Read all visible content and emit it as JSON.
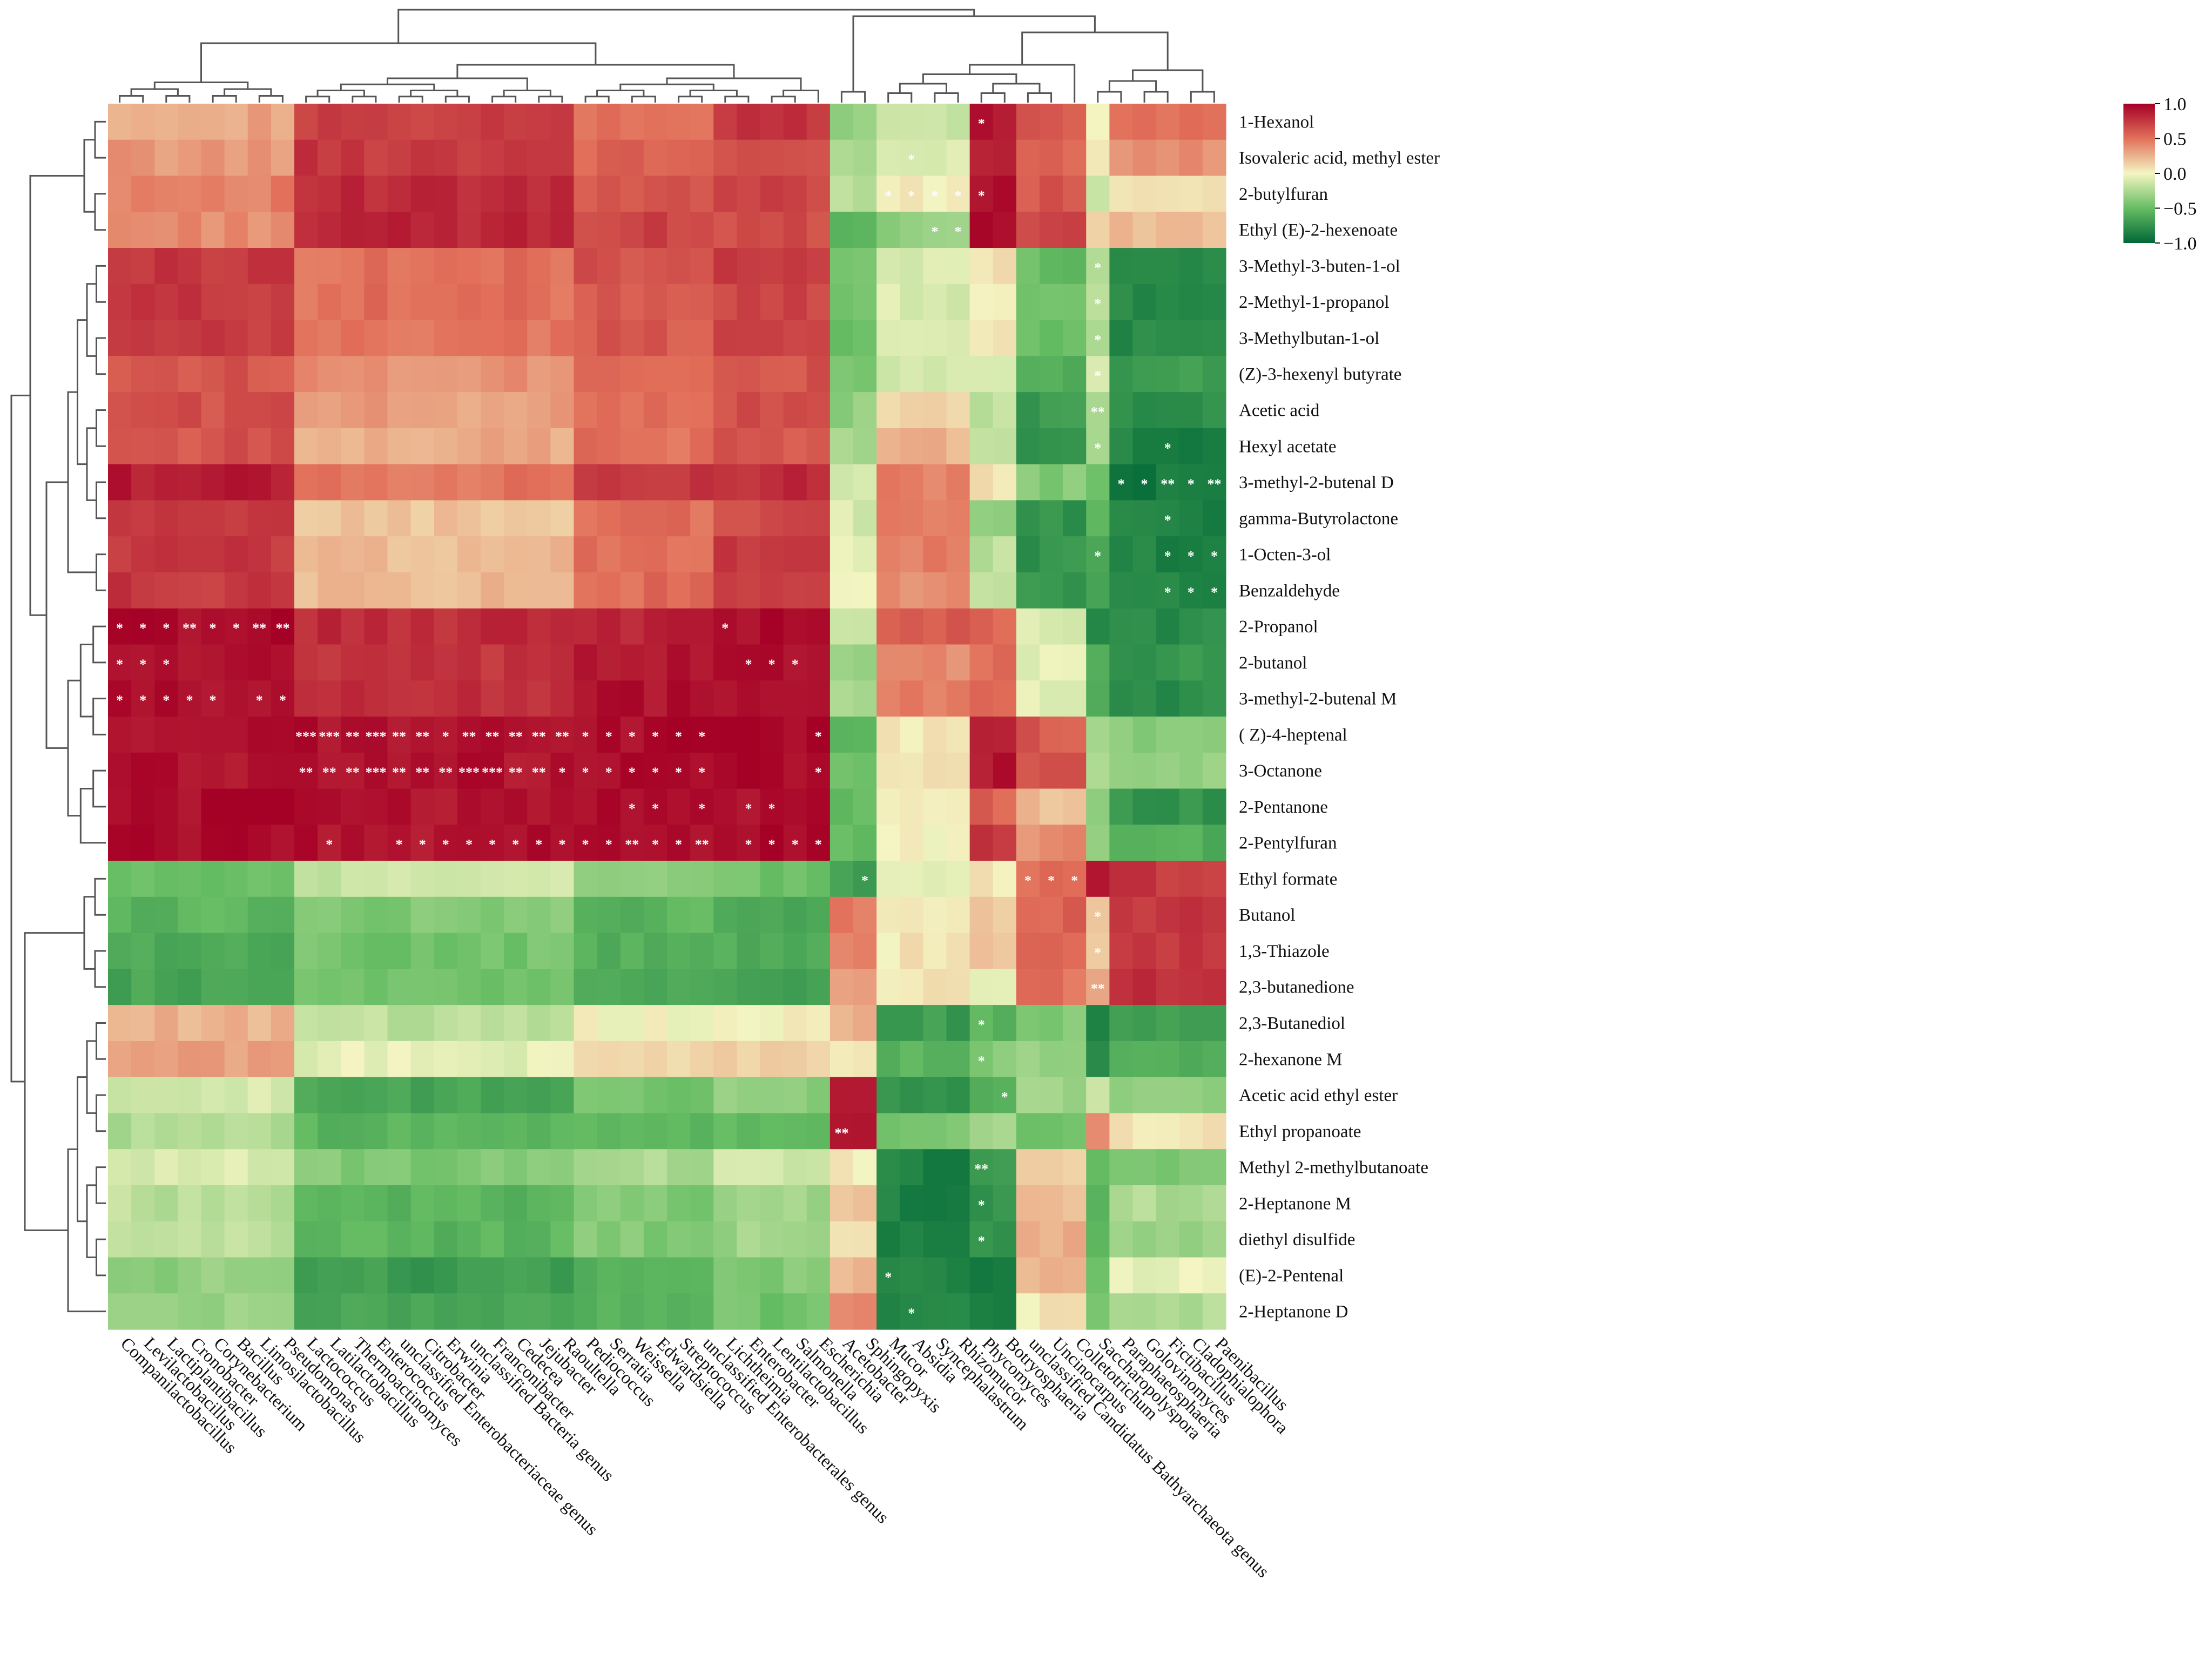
{
  "chart_data": {
    "type": "heatmap",
    "title": "",
    "rows": [
      "1-Hexanol",
      "Isovaleric acid, methyl ester",
      "2-butylfuran",
      "Ethyl (E)-2-hexenoate",
      "3-Methyl-3-buten-1-ol",
      "2-Methyl-1-propanol",
      "3-Methylbutan-1-ol",
      "(Z)-3-hexenyl butyrate",
      "Acetic acid",
      "Hexyl acetate",
      "3-methyl-2-butenal D",
      "gamma-Butyrolactone",
      "1-Octen-3-ol",
      "Benzaldehyde",
      "2-Propanol",
      "2-butanol",
      "3-methyl-2-butenal M",
      "( Z)-4-heptenal",
      "3-Octanone",
      "2-Pentanone",
      "2-Pentylfuran",
      "Ethyl formate",
      "Butanol",
      "1,3-Thiazole",
      "2,3-butanedione",
      "2,3-Butanediol",
      "2-hexanone M",
      "Acetic acid ethyl ester",
      "Ethyl propanoate",
      "Methyl 2-methylbutanoate",
      "2-Heptanone M",
      "diethyl disulfide",
      "(E)-2-Pentenal",
      "2-Heptanone D"
    ],
    "columns": [
      "Companilactobacillus",
      "Levilactobacillus",
      "Lactiplantibacillus",
      "Cronobacter",
      "Corynebacterium",
      "Bacillus",
      "Limosilactobacillus",
      "Pseudomonas",
      "Lactococcus",
      "Latilactobacillus",
      "Thermoactinomyces",
      "Enterococcus",
      "unclassified Enterobacteriaceae genus",
      "Citrobacter",
      "Erwinia",
      "unclassified Bacteria genus",
      "Franconibacter",
      "Cedecea",
      "Jejubacter",
      "Raoultella",
      "Pediococcus",
      "Serratia",
      "Weissella",
      "Edwardsiella",
      "Streptococcus",
      "unclassified Enterobacterales genus",
      "Lichtheimia",
      "Enterobacter",
      "Lentilactobacillus",
      "Salmonella",
      "Escherichia",
      "Acetobacter",
      "Sphingopyxis",
      "Mucor",
      "Absidia",
      "Syncephalastrum",
      "Rhizomucor",
      "Phycomyces",
      "Botryosphaeria",
      "unclassified Candidatus Bathyarchaeota genus",
      "Uncinocarpus",
      "Colletotrichum",
      "Saccharopolyspora",
      "Paraphaeosphaeria",
      "Golovinomyces",
      "Fictibacillus",
      "Cladophialophora",
      "Paenibacillus"
    ],
    "column_blocks": [
      {
        "start": 0,
        "end": 7
      },
      {
        "start": 8,
        "end": 19
      },
      {
        "start": 20,
        "end": 25
      },
      {
        "start": 26,
        "end": 30
      },
      {
        "start": 31,
        "end": 32
      },
      {
        "start": 33,
        "end": 36
      },
      {
        "start": 37,
        "end": 38
      },
      {
        "start": 39,
        "end": 41
      },
      {
        "start": 42,
        "end": 42
      },
      {
        "start": 43,
        "end": 47
      }
    ],
    "block_values": [
      [
        0.3,
        0.7,
        0.5,
        0.75,
        -0.35,
        -0.15,
        0.9,
        0.6,
        0.0,
        0.5
      ],
      [
        0.35,
        0.75,
        0.55,
        0.65,
        -0.3,
        -0.1,
        0.9,
        0.55,
        0.05,
        0.4
      ],
      [
        0.45,
        0.8,
        0.6,
        0.7,
        -0.2,
        0.05,
        0.95,
        0.6,
        -0.2,
        0.1
      ],
      [
        0.4,
        0.82,
        0.7,
        0.65,
        -0.6,
        -0.35,
        0.92,
        0.7,
        0.15,
        0.2
      ],
      [
        0.75,
        0.5,
        0.65,
        0.72,
        -0.45,
        -0.1,
        0.1,
        -0.5,
        -0.2,
        -0.8
      ],
      [
        0.75,
        0.5,
        0.62,
        0.7,
        -0.45,
        -0.1,
        0.05,
        -0.5,
        -0.2,
        -0.8
      ],
      [
        0.72,
        0.48,
        0.6,
        0.7,
        -0.45,
        -0.1,
        0.02,
        -0.5,
        -0.2,
        -0.8
      ],
      [
        0.62,
        0.38,
        0.55,
        0.62,
        -0.4,
        -0.15,
        -0.1,
        -0.6,
        -0.15,
        -0.7
      ],
      [
        0.65,
        0.32,
        0.52,
        0.65,
        -0.35,
        0.1,
        -0.2,
        -0.7,
        -0.25,
        -0.8
      ],
      [
        0.62,
        0.28,
        0.5,
        0.62,
        -0.3,
        0.25,
        -0.15,
        -0.75,
        -0.3,
        -0.85
      ],
      [
        0.88,
        0.48,
        0.78,
        0.8,
        -0.1,
        0.45,
        0.05,
        -0.4,
        -0.5,
        -0.9
      ],
      [
        0.72,
        0.18,
        0.5,
        0.68,
        -0.1,
        0.45,
        -0.35,
        -0.75,
        -0.55,
        -0.85
      ],
      [
        0.75,
        0.22,
        0.52,
        0.72,
        -0.05,
        0.45,
        -0.2,
        -0.75,
        -0.65,
        -0.85
      ],
      [
        0.75,
        0.22,
        0.52,
        0.72,
        -0.05,
        0.4,
        -0.15,
        -0.75,
        -0.65,
        -0.85
      ],
      [
        0.95,
        0.8,
        0.85,
        0.95,
        -0.1,
        0.6,
        0.55,
        -0.1,
        -0.8,
        -0.8
      ],
      [
        0.92,
        0.75,
        0.9,
        0.95,
        -0.3,
        0.4,
        0.5,
        -0.05,
        -0.6,
        -0.75
      ],
      [
        0.92,
        0.8,
        0.92,
        0.95,
        -0.3,
        0.45,
        0.5,
        -0.05,
        -0.6,
        -0.8
      ],
      [
        0.92,
        0.92,
        0.95,
        0.95,
        -0.5,
        0.05,
        0.9,
        0.6,
        -0.25,
        -0.4
      ],
      [
        0.92,
        0.92,
        0.95,
        0.95,
        -0.5,
        0.05,
        0.9,
        0.6,
        -0.25,
        -0.35
      ],
      [
        0.95,
        0.92,
        0.95,
        0.95,
        -0.5,
        0.0,
        0.55,
        0.2,
        -0.35,
        -0.75
      ],
      [
        0.95,
        0.92,
        0.95,
        0.95,
        -0.5,
        0.0,
        0.75,
        0.4,
        -0.3,
        -0.6
      ],
      [
        -0.5,
        -0.15,
        -0.35,
        -0.45,
        -0.7,
        -0.05,
        0.05,
        0.5,
        0.95,
        0.75
      ],
      [
        -0.55,
        -0.4,
        -0.55,
        -0.6,
        0.45,
        0.05,
        0.2,
        0.55,
        0.15,
        0.75
      ],
      [
        -0.6,
        -0.45,
        -0.6,
        -0.62,
        0.4,
        0.05,
        0.15,
        0.55,
        0.15,
        0.75
      ],
      [
        -0.65,
        -0.45,
        -0.62,
        -0.68,
        0.35,
        0.05,
        -0.05,
        0.5,
        0.3,
        0.8
      ],
      [
        0.25,
        -0.2,
        0.0,
        0.0,
        0.25,
        -0.7,
        -0.55,
        -0.4,
        -0.8,
        -0.7
      ],
      [
        0.3,
        -0.05,
        0.1,
        0.15,
        0.0,
        -0.55,
        -0.4,
        -0.35,
        -0.8,
        -0.6
      ],
      [
        -0.1,
        -0.65,
        -0.45,
        -0.35,
        0.85,
        -0.75,
        -0.55,
        -0.3,
        -0.1,
        -0.35
      ],
      [
        -0.25,
        -0.55,
        -0.55,
        -0.5,
        0.85,
        -0.45,
        -0.3,
        -0.5,
        0.35,
        0.05
      ],
      [
        -0.1,
        -0.4,
        -0.25,
        -0.15,
        0.05,
        -0.85,
        -0.7,
        0.15,
        -0.55,
        -0.4
      ],
      [
        -0.2,
        -0.55,
        -0.4,
        -0.3,
        0.2,
        -0.85,
        -0.75,
        0.2,
        -0.55,
        -0.25
      ],
      [
        -0.2,
        -0.55,
        -0.4,
        -0.3,
        0.05,
        -0.85,
        -0.75,
        0.25,
        -0.55,
        -0.3
      ],
      [
        -0.35,
        -0.7,
        -0.55,
        -0.4,
        0.25,
        -0.85,
        -0.85,
        0.25,
        -0.45,
        -0.05
      ],
      [
        -0.3,
        -0.65,
        -0.55,
        -0.45,
        0.4,
        -0.85,
        -0.85,
        0.05,
        -0.4,
        -0.25
      ]
    ],
    "significance": [
      {
        "row": 0,
        "col": 37,
        "label": "*"
      },
      {
        "row": 1,
        "col": 34,
        "label": "*"
      },
      {
        "row": 2,
        "col": 33,
        "label": "*"
      },
      {
        "row": 2,
        "col": 34,
        "label": "*"
      },
      {
        "row": 2,
        "col": 35,
        "label": "*"
      },
      {
        "row": 2,
        "col": 36,
        "label": "*"
      },
      {
        "row": 2,
        "col": 37,
        "label": "*"
      },
      {
        "row": 3,
        "col": 35,
        "label": "*"
      },
      {
        "row": 3,
        "col": 36,
        "label": "*"
      },
      {
        "row": 4,
        "col": 42,
        "label": "*"
      },
      {
        "row": 5,
        "col": 42,
        "label": "*"
      },
      {
        "row": 6,
        "col": 42,
        "label": "*"
      },
      {
        "row": 7,
        "col": 42,
        "label": "*"
      },
      {
        "row": 8,
        "col": 42,
        "label": "**"
      },
      {
        "row": 9,
        "col": 42,
        "label": "*"
      },
      {
        "row": 9,
        "col": 45,
        "label": "*"
      },
      {
        "row": 10,
        "col": 43,
        "label": "*"
      },
      {
        "row": 10,
        "col": 44,
        "label": "*"
      },
      {
        "row": 10,
        "col": 45,
        "label": "**"
      },
      {
        "row": 10,
        "col": 46,
        "label": "*"
      },
      {
        "row": 10,
        "col": 47,
        "label": "**"
      },
      {
        "row": 11,
        "col": 45,
        "label": "*"
      },
      {
        "row": 12,
        "col": 42,
        "label": "*"
      },
      {
        "row": 12,
        "col": 45,
        "label": "*"
      },
      {
        "row": 12,
        "col": 46,
        "label": "*"
      },
      {
        "row": 12,
        "col": 47,
        "label": "*"
      },
      {
        "row": 13,
        "col": 45,
        "label": "*"
      },
      {
        "row": 13,
        "col": 46,
        "label": "*"
      },
      {
        "row": 13,
        "col": 47,
        "label": "*"
      },
      {
        "row": 14,
        "col": 0,
        "label": "*"
      },
      {
        "row": 14,
        "col": 1,
        "label": "*"
      },
      {
        "row": 14,
        "col": 2,
        "label": "*"
      },
      {
        "row": 14,
        "col": 3,
        "label": "**"
      },
      {
        "row": 14,
        "col": 4,
        "label": "*"
      },
      {
        "row": 14,
        "col": 5,
        "label": "*"
      },
      {
        "row": 14,
        "col": 6,
        "label": "**"
      },
      {
        "row": 14,
        "col": 7,
        "label": "**"
      },
      {
        "row": 14,
        "col": 26,
        "label": "*"
      },
      {
        "row": 15,
        "col": 0,
        "label": "*"
      },
      {
        "row": 15,
        "col": 1,
        "label": "*"
      },
      {
        "row": 15,
        "col": 2,
        "label": "*"
      },
      {
        "row": 15,
        "col": 27,
        "label": "*"
      },
      {
        "row": 15,
        "col": 28,
        "label": "*"
      },
      {
        "row": 15,
        "col": 29,
        "label": "*"
      },
      {
        "row": 16,
        "col": 0,
        "label": "*"
      },
      {
        "row": 16,
        "col": 1,
        "label": "*"
      },
      {
        "row": 16,
        "col": 2,
        "label": "*"
      },
      {
        "row": 16,
        "col": 3,
        "label": "*"
      },
      {
        "row": 16,
        "col": 4,
        "label": "*"
      },
      {
        "row": 16,
        "col": 6,
        "label": "*"
      },
      {
        "row": 16,
        "col": 7,
        "label": "*"
      },
      {
        "row": 17,
        "col": 8,
        "label": "***"
      },
      {
        "row": 17,
        "col": 9,
        "label": "***"
      },
      {
        "row": 17,
        "col": 10,
        "label": "**"
      },
      {
        "row": 17,
        "col": 11,
        "label": "***"
      },
      {
        "row": 17,
        "col": 12,
        "label": "**"
      },
      {
        "row": 17,
        "col": 13,
        "label": "**"
      },
      {
        "row": 17,
        "col": 14,
        "label": "*"
      },
      {
        "row": 17,
        "col": 15,
        "label": "**"
      },
      {
        "row": 17,
        "col": 16,
        "label": "**"
      },
      {
        "row": 17,
        "col": 17,
        "label": "**"
      },
      {
        "row": 17,
        "col": 18,
        "label": "**"
      },
      {
        "row": 17,
        "col": 19,
        "label": "**"
      },
      {
        "row": 17,
        "col": 20,
        "label": "*"
      },
      {
        "row": 17,
        "col": 21,
        "label": "*"
      },
      {
        "row": 17,
        "col": 22,
        "label": "*"
      },
      {
        "row": 17,
        "col": 23,
        "label": "*"
      },
      {
        "row": 17,
        "col": 24,
        "label": "*"
      },
      {
        "row": 17,
        "col": 25,
        "label": "*"
      },
      {
        "row": 17,
        "col": 30,
        "label": "*"
      },
      {
        "row": 18,
        "col": 8,
        "label": "**"
      },
      {
        "row": 18,
        "col": 9,
        "label": "**"
      },
      {
        "row": 18,
        "col": 10,
        "label": "**"
      },
      {
        "row": 18,
        "col": 11,
        "label": "***"
      },
      {
        "row": 18,
        "col": 12,
        "label": "**"
      },
      {
        "row": 18,
        "col": 13,
        "label": "**"
      },
      {
        "row": 18,
        "col": 14,
        "label": "**"
      },
      {
        "row": 18,
        "col": 15,
        "label": "***"
      },
      {
        "row": 18,
        "col": 16,
        "label": "***"
      },
      {
        "row": 18,
        "col": 17,
        "label": "**"
      },
      {
        "row": 18,
        "col": 18,
        "label": "**"
      },
      {
        "row": 18,
        "col": 19,
        "label": "*"
      },
      {
        "row": 18,
        "col": 20,
        "label": "*"
      },
      {
        "row": 18,
        "col": 21,
        "label": "*"
      },
      {
        "row": 18,
        "col": 22,
        "label": "*"
      },
      {
        "row": 18,
        "col": 23,
        "label": "*"
      },
      {
        "row": 18,
        "col": 24,
        "label": "*"
      },
      {
        "row": 18,
        "col": 25,
        "label": "*"
      },
      {
        "row": 18,
        "col": 30,
        "label": "*"
      },
      {
        "row": 19,
        "col": 22,
        "label": "*"
      },
      {
        "row": 19,
        "col": 23,
        "label": "*"
      },
      {
        "row": 19,
        "col": 25,
        "label": "*"
      },
      {
        "row": 19,
        "col": 27,
        "label": "*"
      },
      {
        "row": 19,
        "col": 28,
        "label": "*"
      },
      {
        "row": 20,
        "col": 9,
        "label": "*"
      },
      {
        "row": 20,
        "col": 12,
        "label": "*"
      },
      {
        "row": 20,
        "col": 13,
        "label": "*"
      },
      {
        "row": 20,
        "col": 14,
        "label": "*"
      },
      {
        "row": 20,
        "col": 15,
        "label": "*"
      },
      {
        "row": 20,
        "col": 16,
        "label": "*"
      },
      {
        "row": 20,
        "col": 17,
        "label": "*"
      },
      {
        "row": 20,
        "col": 18,
        "label": "*"
      },
      {
        "row": 20,
        "col": 19,
        "label": "*"
      },
      {
        "row": 20,
        "col": 20,
        "label": "*"
      },
      {
        "row": 20,
        "col": 21,
        "label": "*"
      },
      {
        "row": 20,
        "col": 22,
        "label": "**"
      },
      {
        "row": 20,
        "col": 23,
        "label": "*"
      },
      {
        "row": 20,
        "col": 24,
        "label": "*"
      },
      {
        "row": 20,
        "col": 25,
        "label": "**"
      },
      {
        "row": 20,
        "col": 27,
        "label": "*"
      },
      {
        "row": 20,
        "col": 28,
        "label": "*"
      },
      {
        "row": 20,
        "col": 29,
        "label": "*"
      },
      {
        "row": 20,
        "col": 30,
        "label": "*"
      },
      {
        "row": 21,
        "col": 32,
        "label": "*"
      },
      {
        "row": 21,
        "col": 39,
        "label": "*"
      },
      {
        "row": 21,
        "col": 40,
        "label": "*"
      },
      {
        "row": 21,
        "col": 41,
        "label": "*"
      },
      {
        "row": 22,
        "col": 42,
        "label": "*"
      },
      {
        "row": 23,
        "col": 42,
        "label": "*"
      },
      {
        "row": 24,
        "col": 42,
        "label": "**"
      },
      {
        "row": 25,
        "col": 37,
        "label": "*"
      },
      {
        "row": 26,
        "col": 37,
        "label": "*"
      },
      {
        "row": 27,
        "col": 38,
        "label": "*"
      },
      {
        "row": 28,
        "col": 31,
        "label": "**"
      },
      {
        "row": 29,
        "col": 37,
        "label": "**"
      },
      {
        "row": 30,
        "col": 37,
        "label": "*"
      },
      {
        "row": 31,
        "col": 37,
        "label": "*"
      },
      {
        "row": 32,
        "col": 33,
        "label": "*"
      },
      {
        "row": 33,
        "col": 34,
        "label": "*"
      }
    ],
    "colorbar": {
      "range": [
        -1.0,
        1.0
      ],
      "ticks": [
        "1.0",
        "0.5",
        "0.0",
        "−0.5",
        "−1.0"
      ],
      "colors": [
        "#a50026",
        "#f4f5c2",
        "#006837"
      ]
    }
  }
}
